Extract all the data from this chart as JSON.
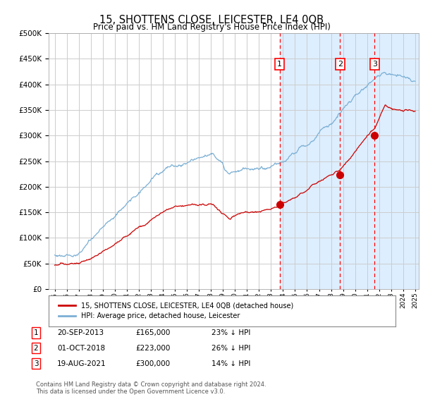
{
  "title": "15, SHOTTENS CLOSE, LEICESTER, LE4 0QB",
  "subtitle": "Price paid vs. HM Land Registry's House Price Index (HPI)",
  "legend_line1": "15, SHOTTENS CLOSE, LEICESTER, LE4 0QB (detached house)",
  "legend_line2": "HPI: Average price, detached house, Leicester",
  "footer_line1": "Contains HM Land Registry data © Crown copyright and database right 2024.",
  "footer_line2": "This data is licensed under the Open Government Licence v3.0.",
  "hpi_color": "#7bafd4",
  "price_color": "#cc0000",
  "background_color": "#ffffff",
  "plot_bg_color": "#ffffff",
  "shaded_bg_color": "#ddeeff",
  "grid_color": "#cccccc",
  "ylim": [
    0,
    500000
  ],
  "yticks": [
    0,
    50000,
    100000,
    150000,
    200000,
    250000,
    300000,
    350000,
    400000,
    450000,
    500000
  ],
  "sale_year_nums": [
    2013.72,
    2018.75,
    2021.63
  ],
  "sale_prices": [
    165000,
    223000,
    300000
  ],
  "sale_labels": [
    "1",
    "2",
    "3"
  ],
  "table_rows": [
    [
      "1",
      "20-SEP-2013",
      "£165,000",
      "23% ↓ HPI"
    ],
    [
      "2",
      "01-OCT-2018",
      "£223,000",
      "26% ↓ HPI"
    ],
    [
      "3",
      "19-AUG-2021",
      "£300,000",
      "14% ↓ HPI"
    ]
  ],
  "x_start_year": 1995,
  "x_end_year": 2025
}
